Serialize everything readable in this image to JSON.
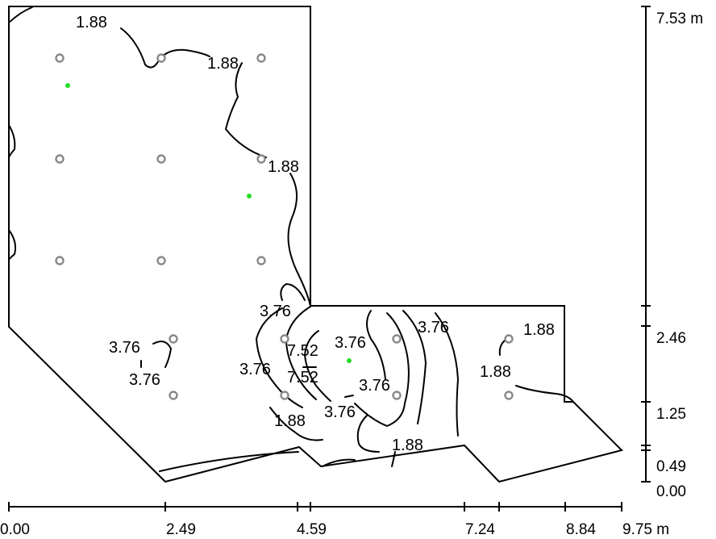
{
  "plan": {
    "contour_labels": [
      {
        "id": "c1",
        "text": "1.88"
      },
      {
        "id": "c2",
        "text": "1.88"
      },
      {
        "id": "c3",
        "text": "1.88"
      },
      {
        "id": "c4",
        "text": "3.76"
      },
      {
        "id": "c5",
        "text": "3.76"
      },
      {
        "id": "c6",
        "text": "3.76"
      },
      {
        "id": "c7",
        "text": "7.52"
      },
      {
        "id": "c8",
        "text": "3.76"
      },
      {
        "id": "c9",
        "text": "3.76"
      },
      {
        "id": "c10",
        "text": "7.52"
      },
      {
        "id": "c11",
        "text": "3.76"
      },
      {
        "id": "c12",
        "text": "1.88"
      },
      {
        "id": "c13",
        "text": "3.76"
      },
      {
        "id": "c14",
        "text": "3.76"
      },
      {
        "id": "c15",
        "text": "1.88"
      },
      {
        "id": "c16",
        "text": "1.88"
      },
      {
        "id": "c17",
        "text": "1.88"
      }
    ]
  },
  "x_axis": {
    "tick_labels": [
      "0.00",
      "2.49",
      "4.59",
      "7.24",
      "8.84",
      "9.75 m"
    ]
  },
  "y_axis": {
    "tick_labels": [
      "7.53 m",
      "2.46",
      "1.25",
      "0.49",
      "0.00"
    ]
  }
}
